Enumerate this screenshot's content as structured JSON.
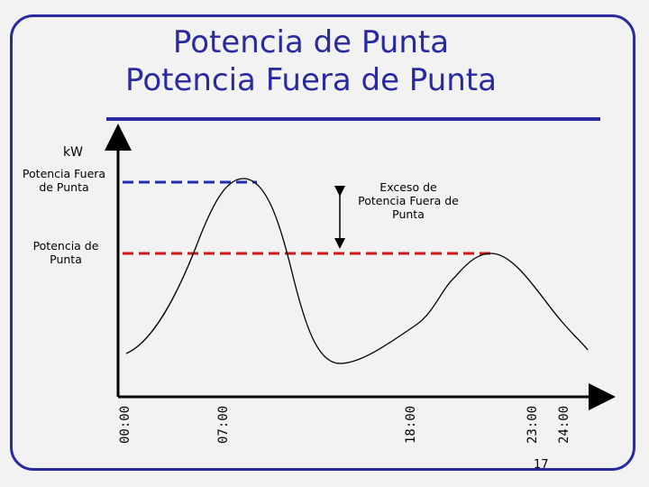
{
  "slide": {
    "title_line1": "Potencia de Punta",
    "title_line2": "Potencia Fuera de Punta",
    "page_number": "17"
  },
  "diagram": {
    "y_axis_label": "kW",
    "level_offpeak_label": "Potencia Fuera de Punta",
    "level_peak_label": "Potencia de Punta",
    "excess_label": "Exceso de Potencia Fuera de Punta",
    "time_ticks": [
      "00:00",
      "07:00",
      "18:00",
      "23:00",
      "24:00"
    ],
    "colors": {
      "title": "#2a2aa0",
      "offpeak_line": "#1f2fb0",
      "peak_line": "#d01818",
      "curve": "#000000"
    }
  }
}
